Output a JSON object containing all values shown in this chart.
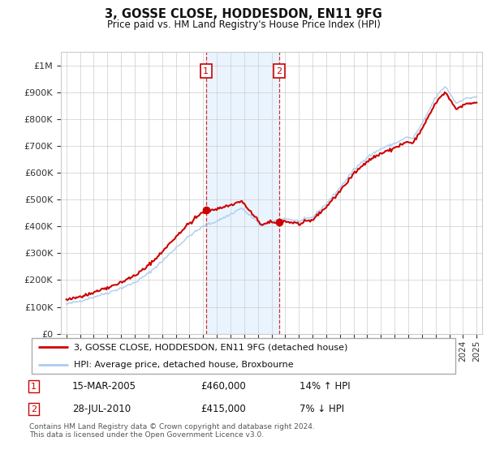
{
  "title": "3, GOSSE CLOSE, HODDESDON, EN11 9FG",
  "subtitle": "Price paid vs. HM Land Registry's House Price Index (HPI)",
  "hpi_label": "HPI: Average price, detached house, Broxbourne",
  "property_label": "3, GOSSE CLOSE, HODDESDON, EN11 9FG (detached house)",
  "transaction1_date": "15-MAR-2005",
  "transaction1_price": 460000,
  "transaction1_hpi": "14% ↑ HPI",
  "transaction2_date": "28-JUL-2010",
  "transaction2_price": 415000,
  "transaction2_hpi": "7% ↓ HPI",
  "footnote": "Contains HM Land Registry data © Crown copyright and database right 2024.\nThis data is licensed under the Open Government Licence v3.0.",
  "hpi_color": "#aaccee",
  "property_color": "#cc0000",
  "transaction_box_color": "#cc0000",
  "shading_color": "#ddeeff",
  "shading_alpha": 0.6,
  "background_color": "#ffffff",
  "grid_color": "#cccccc",
  "ylim": [
    0,
    1050000
  ],
  "yticks": [
    0,
    100000,
    200000,
    300000,
    400000,
    500000,
    600000,
    700000,
    800000,
    900000,
    1000000
  ],
  "year_start": 1995,
  "year_end": 2025
}
